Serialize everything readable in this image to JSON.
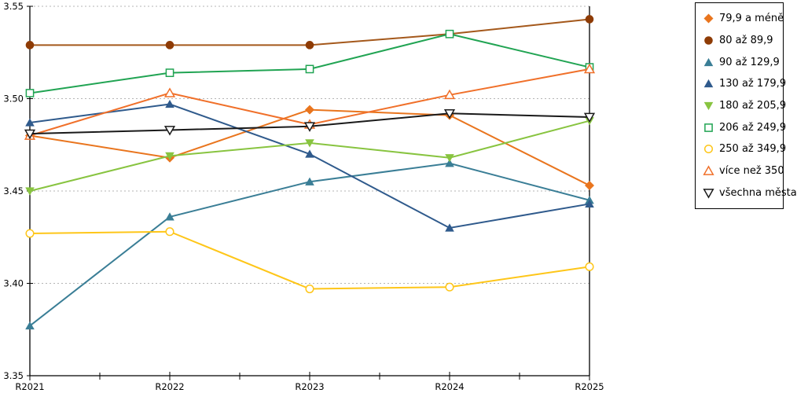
{
  "chart": {
    "background": "#ffffff",
    "gridline_color": "#b5b5b5",
    "axis_color": "#000000"
  },
  "chart_data": {
    "type": "line",
    "title": "",
    "xlabel": "",
    "ylabel": "",
    "x": [
      "R2021",
      "R2022",
      "R2023",
      "R2024",
      "R2025"
    ],
    "ylim": [
      3.35,
      3.55
    ],
    "yticks": [
      3.35,
      3.4,
      3.45,
      3.5,
      3.55
    ],
    "ytick_labels": [
      "3.35",
      "3.40",
      "3.45",
      "3.50",
      "3.55"
    ],
    "grid": "horizontal-dashed",
    "legend_position": "right",
    "series": [
      {
        "name": "79,9 a méně",
        "marker": "diamond",
        "style": "filled",
        "color": "#E9751E",
        "values": [
          3.48,
          3.468,
          3.494,
          3.491,
          3.453
        ]
      },
      {
        "name": "80 až 89,9",
        "marker": "circle",
        "style": "filled",
        "color": "#A4581B",
        "marker_color": "#8E3B05",
        "values": [
          3.529,
          3.529,
          3.529,
          3.535,
          3.543
        ]
      },
      {
        "name": "90 až 129,9",
        "marker": "triangle-up",
        "style": "filled",
        "color": "#3A7E96",
        "values": [
          3.377,
          3.436,
          3.455,
          3.465,
          3.445
        ]
      },
      {
        "name": "130 až 179,9",
        "marker": "triangle-up",
        "style": "filled",
        "color": "#2F5A8C",
        "values": [
          3.487,
          3.497,
          3.47,
          3.43,
          3.443
        ]
      },
      {
        "name": "180 až 205,9",
        "marker": "triangle-down",
        "style": "filled",
        "color": "#88C440",
        "values": [
          3.45,
          3.469,
          3.476,
          3.468,
          3.488
        ]
      },
      {
        "name": "206 až 249,9",
        "marker": "square",
        "style": "open",
        "color": "#21A453",
        "values": [
          3.503,
          3.514,
          3.516,
          3.535,
          3.517
        ]
      },
      {
        "name": "250 až 349,9",
        "marker": "circle",
        "style": "open",
        "color": "#FEC619",
        "values": [
          3.427,
          3.428,
          3.397,
          3.398,
          3.409
        ]
      },
      {
        "name": "více než 350",
        "marker": "triangle-up",
        "style": "open",
        "color": "#F0702A",
        "values": [
          3.48,
          3.503,
          3.486,
          3.502,
          3.516
        ]
      },
      {
        "name": "všechna města",
        "marker": "triangle-down",
        "style": "open",
        "color": "#1A1A1A",
        "values": [
          3.481,
          3.483,
          3.485,
          3.492,
          3.49
        ]
      }
    ]
  }
}
